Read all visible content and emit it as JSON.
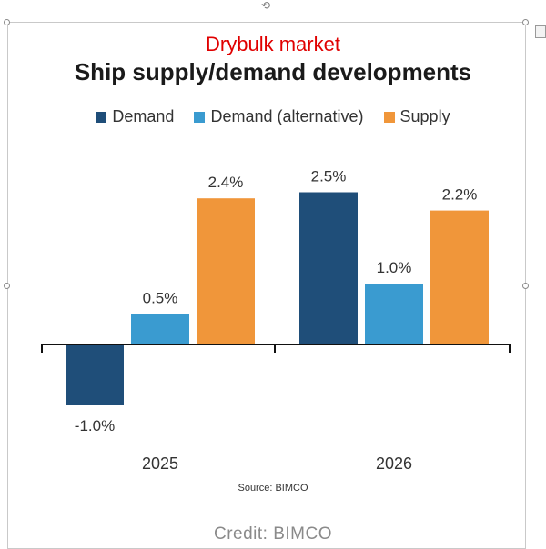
{
  "header": {
    "super_title": "Drybulk market",
    "title": "Ship supply/demand  developments"
  },
  "footer": {
    "source": "Source: BIMCO",
    "credit": "Credit: BIMCO"
  },
  "colors": {
    "demand": "#1f4e79",
    "demand_alt": "#3a9bd0",
    "supply": "#f0963a",
    "title_red": "#e00000"
  },
  "chart_data": {
    "type": "bar",
    "categories": [
      "2025",
      "2026"
    ],
    "series": [
      {
        "name": "Demand",
        "values": [
          -1.0,
          2.5
        ],
        "labels": [
          "-1.0%",
          "2.5%"
        ]
      },
      {
        "name": "Demand (alternative)",
        "values": [
          0.5,
          1.0
        ],
        "labels": [
          "0.5%",
          "1.0%"
        ]
      },
      {
        "name": "Supply",
        "values": [
          2.4,
          2.2
        ],
        "labels": [
          "2.4%",
          "2.2%"
        ]
      }
    ],
    "title": "Ship supply/demand  developments",
    "legend": "top",
    "grid": false,
    "ylim": [
      -1.2,
      2.7
    ]
  }
}
